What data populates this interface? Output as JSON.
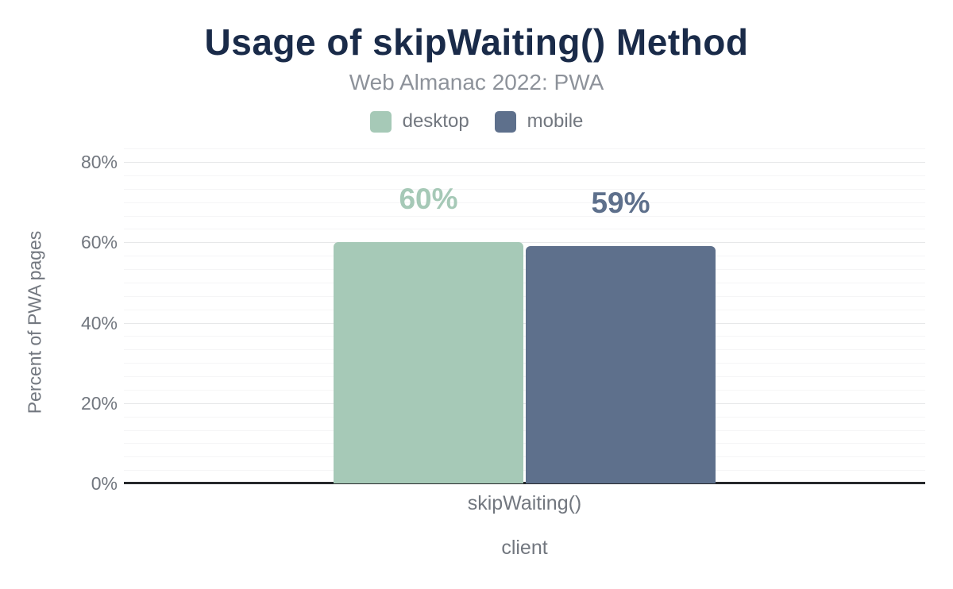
{
  "header": {
    "title": "Usage of skipWaiting() Method",
    "subtitle": "Web Almanac 2022: PWA"
  },
  "colors": {
    "title_text": "#1a2b49",
    "subtitle_text": "#8d929a",
    "axis_text": "#72777f",
    "axis_line": "#26282b",
    "gridline_major": "#e7e8e9",
    "gridline_minor": "#f5f5f6",
    "desktop": "#a6c9b7",
    "mobile": "#5e708c"
  },
  "chart_data": {
    "type": "bar",
    "title": "Usage of skipWaiting() Method",
    "subtitle": "Web Almanac 2022: PWA",
    "categories": [
      "skipWaiting()"
    ],
    "series": [
      {
        "name": "desktop",
        "values": [
          60
        ],
        "data_labels": [
          "60%"
        ],
        "color": "#a6c9b7"
      },
      {
        "name": "mobile",
        "values": [
          59
        ],
        "data_labels": [
          "59%"
        ],
        "color": "#5e708c"
      }
    ],
    "xlabel": "client",
    "ylabel": "Percent of PWA pages",
    "ylim": [
      0,
      80
    ],
    "yticks": [
      0,
      20,
      40,
      60,
      80
    ],
    "ytick_labels": [
      "0%",
      "20%",
      "40%",
      "60%",
      "80%"
    ],
    "grid": "horizontal, major every 20% with faint minor lines",
    "legend_position": "top-center"
  }
}
